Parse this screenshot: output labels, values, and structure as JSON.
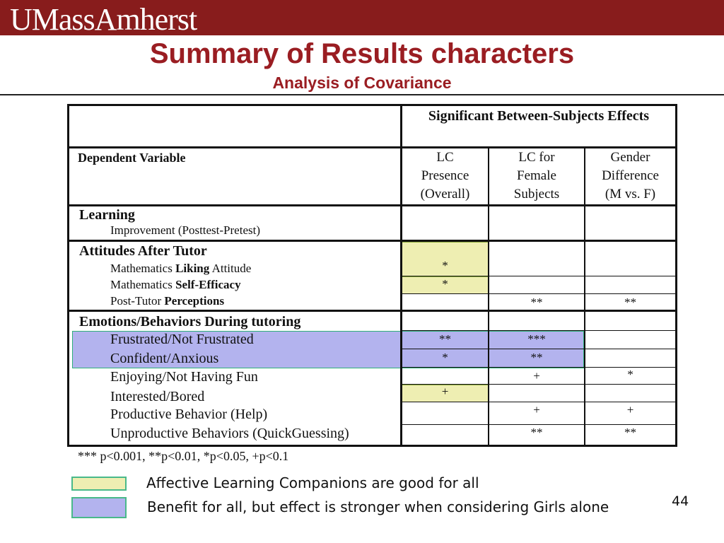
{
  "header": {
    "brand": "UMassAmherst"
  },
  "slide": {
    "title": "Summary of Results characters",
    "subtitle": "Analysis of Covariance",
    "page_number": "44"
  },
  "table": {
    "top_header": "Significant Between-Subjects Effects",
    "dv_header": "Dependent Variable",
    "col_headers": {
      "lc": [
        "LC",
        "Presence",
        "(Overall)"
      ],
      "female": [
        "LC for",
        "Female",
        "Subjects"
      ],
      "gender": [
        "Gender",
        "Difference",
        "(M vs. F)"
      ]
    },
    "learning": {
      "title": "Learning",
      "improvement": "Improvement (Posttest-Pretest)"
    },
    "attitudes": {
      "title": "Attitudes After Tutor",
      "liking": {
        "prefix": "Mathematics ",
        "bold": "Liking",
        "suffix": " Attitude",
        "lc": "*"
      },
      "efficacy": {
        "prefix": "Mathematics ",
        "bold": "Self-Efficacy",
        "lc": "*"
      },
      "perceptions": {
        "prefix": "Post-Tutor ",
        "bold": "Perceptions",
        "female": "**",
        "gender": "**"
      }
    },
    "emotions": {
      "title": "Emotions/Behaviors During tutoring",
      "frustrated": {
        "label": "Frustrated/Not Frustrated",
        "lc": "**",
        "female": "***"
      },
      "confident": {
        "label": "Confident/Anxious",
        "lc": "*",
        "female": "**"
      },
      "enjoying": {
        "label": "Enjoying/Not Having Fun",
        "female": "+",
        "gender": "*"
      },
      "interested": {
        "label": "Interested/Bored",
        "lc": "+"
      },
      "productive": {
        "label": "Productive Behavior (Help)",
        "female": "+",
        "gender": "+"
      },
      "unproductive": {
        "label": "Unproductive Behaviors (QuickGuessing)",
        "female": "**",
        "gender": "**"
      }
    },
    "footnote": "*** p<0.001, **p<0.01, *p<0.05, +p<0.1"
  },
  "legend": {
    "yellow": {
      "text": "Affective Learning Companions are good for all",
      "color": "#eeeeb2"
    },
    "blue": {
      "text": "Benefit for all, but effect is stronger when considering Girls alone",
      "color": "#b3b3ee"
    }
  }
}
